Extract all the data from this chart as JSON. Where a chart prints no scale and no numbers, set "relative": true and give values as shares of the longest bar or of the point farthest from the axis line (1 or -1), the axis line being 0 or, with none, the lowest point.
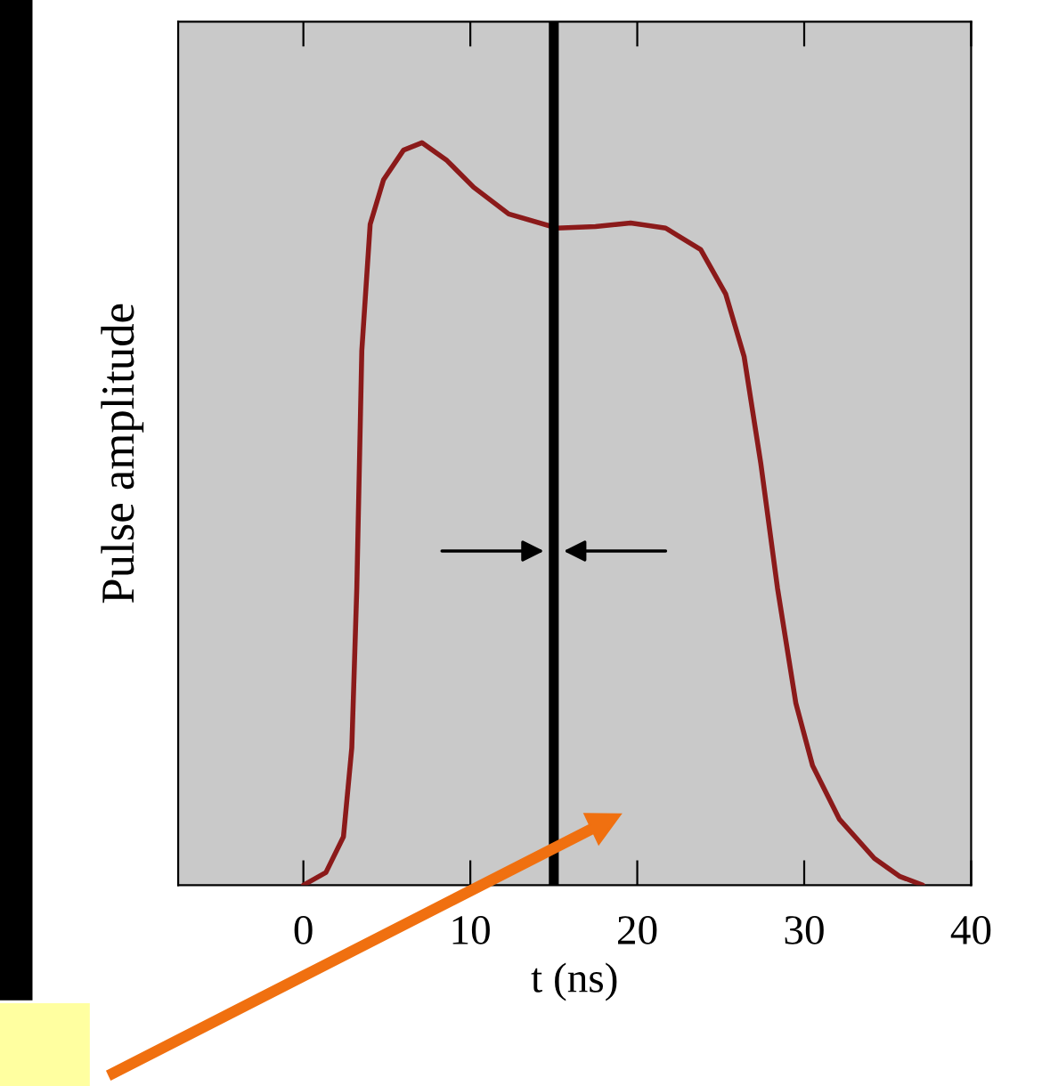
{
  "chart_data": {
    "type": "line",
    "relative": true,
    "xlabel": "t (ns)",
    "ylabel": "Pulse amplitude",
    "color": "#8b1a1a",
    "grid": false,
    "legend": false,
    "tick_labels": "x",
    "xlim": [
      -7.5,
      40
    ],
    "xticks": [
      0,
      10,
      20,
      30,
      40
    ],
    "x": [
      0,
      1.35,
      2.4,
      2.9,
      3.2,
      3.5,
      4.0,
      4.8,
      6.0,
      7.1,
      8.6,
      10.2,
      12.3,
      15.2,
      17.5,
      19.6,
      21.7,
      23.8,
      25.3,
      26.4,
      27.4,
      28.4,
      29.5,
      30.5,
      32.1,
      34.2,
      35.7,
      37.1
    ],
    "values": [
      0,
      0.017,
      0.065,
      0.185,
      0.4,
      0.72,
      0.89,
      0.95,
      0.99,
      1,
      0.976,
      0.94,
      0.904,
      0.885,
      0.887,
      0.892,
      0.885,
      0.856,
      0.796,
      0.712,
      0.568,
      0.4,
      0.245,
      0.161,
      0.089,
      0.036,
      0.012,
      0
    ],
    "ref_lines": [
      {
        "axis": "x",
        "value": 15,
        "label": null,
        "color": "#000000"
      }
    ]
  }
}
